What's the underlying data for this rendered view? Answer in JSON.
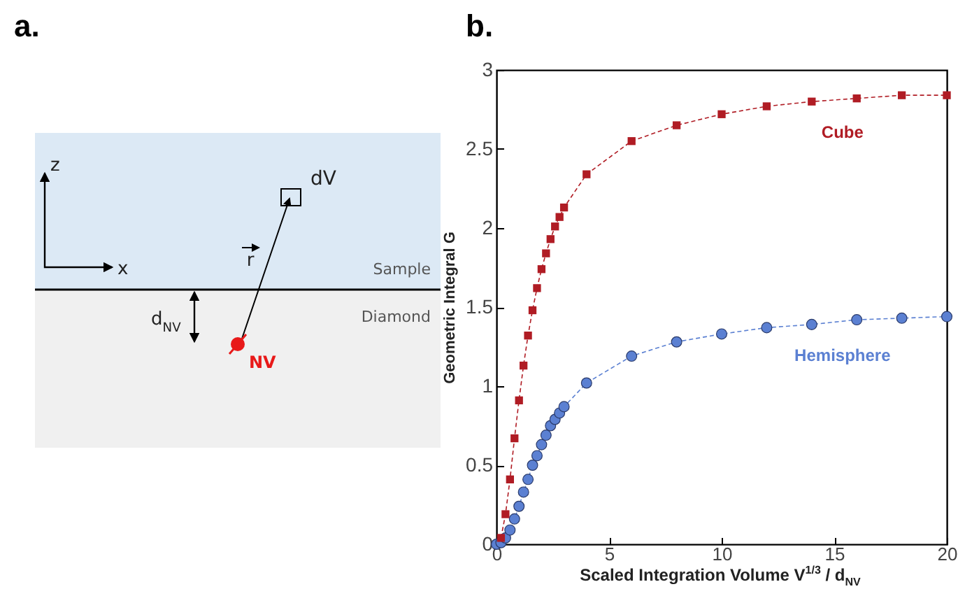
{
  "chart_data": [
    {
      "type": "other",
      "title": "a.",
      "annotations": [
        "z",
        "x",
        "dV",
        "r",
        "Sample",
        "Diamond",
        "d$_{NV}$",
        "NV"
      ]
    },
    {
      "type": "line",
      "title": "b.",
      "xlabel": "Scaled Integration Volume V$^{1/3}$ / d$_{NV}$",
      "ylabel": "Geometric Integral G",
      "xlim": [
        0,
        20
      ],
      "xticks": [
        0,
        5,
        10,
        15,
        20
      ],
      "ylim": [
        0,
        3
      ],
      "yticks": [
        0,
        0.5,
        1,
        1.5,
        2,
        2.5,
        3
      ],
      "grid": false,
      "legend": false,
      "line_style": "dashed",
      "x": [
        0,
        0.2,
        0.4,
        0.6,
        0.8,
        1.0,
        1.2,
        1.4,
        1.6,
        1.8,
        2.0,
        2.2,
        2.4,
        2.6,
        2.8,
        3.0,
        4,
        6,
        8,
        10,
        12,
        14,
        16,
        18,
        20
      ],
      "series": [
        {
          "name": "Cube",
          "color": "#b01c24",
          "marker": "square",
          "values": [
            null,
            0.04,
            0.19,
            0.41,
            0.67,
            0.91,
            1.13,
            1.32,
            1.48,
            1.62,
            1.74,
            1.84,
            1.93,
            2.01,
            2.07,
            2.13,
            2.34,
            2.55,
            2.65,
            2.72,
            2.77,
            2.8,
            2.82,
            2.84,
            2.84
          ]
        },
        {
          "name": "Hemisphere",
          "color": "#5b80d2",
          "marker": "circle",
          "values": [
            0,
            0.01,
            0.04,
            0.09,
            0.16,
            0.24,
            0.33,
            0.41,
            0.5,
            0.56,
            0.63,
            0.69,
            0.75,
            0.79,
            0.83,
            0.87,
            1.02,
            1.19,
            1.28,
            1.33,
            1.37,
            1.39,
            1.42,
            1.43,
            1.44
          ]
        }
      ]
    }
  ]
}
